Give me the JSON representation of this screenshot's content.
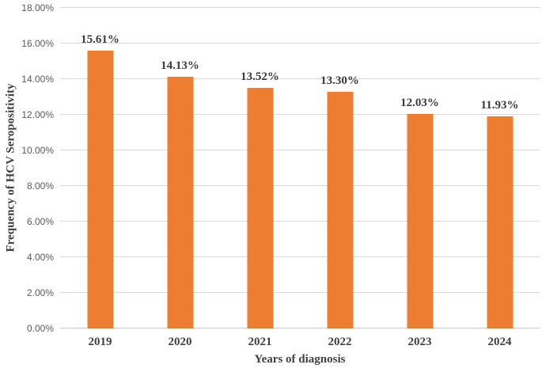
{
  "chart_data": {
    "type": "bar",
    "title": "",
    "categories": [
      "2019",
      "2020",
      "2021",
      "2022",
      "2023",
      "2024"
    ],
    "values": [
      15.61,
      14.13,
      13.52,
      13.3,
      12.03,
      11.93
    ],
    "data_labels": [
      "15.61%",
      "14.13%",
      "13.52%",
      "13.30%",
      "12.03%",
      "11.93%"
    ],
    "xlabel": "Years of diagnosis",
    "ylabel": "Frequency of HCV Seropositivity",
    "ylim": [
      0,
      18
    ],
    "ytick_step": 2,
    "ytick_labels": [
      "0.00%",
      "2.00%",
      "4.00%",
      "6.00%",
      "8.00%",
      "10.00%",
      "12.00%",
      "14.00%",
      "16.00%",
      "18.00%"
    ],
    "grid": true,
    "legend": "none",
    "colors": {
      "bar": "#ED7D31",
      "gridline": "#D9D9D9",
      "axis_line": "#C8C8C8",
      "y_tick_text": "#595959",
      "data_label_text": "#3B3B3B",
      "axis_title_text": "#404040",
      "x_tick_text": "#404040",
      "background": "#FFFFFF"
    }
  }
}
